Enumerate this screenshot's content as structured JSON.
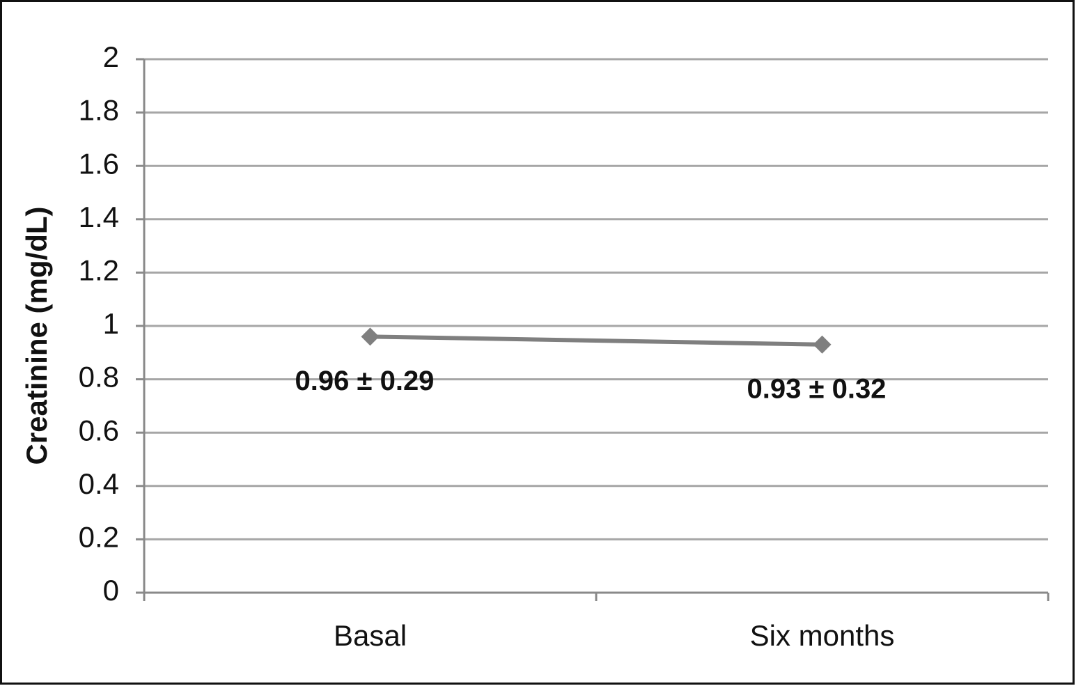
{
  "chart_data": {
    "type": "line",
    "y_label": "Creatinine (mg/dL)",
    "categories": [
      "Basal",
      "Six months"
    ],
    "values": [
      0.96,
      0.93
    ],
    "value_labels": [
      "0.96 ± 0.29",
      "0.93 ± 0.32"
    ],
    "color": "#7f7f7f",
    "ylim": [
      0,
      2
    ],
    "yticks": [
      0,
      0.2,
      0.4,
      0.6,
      0.8,
      1,
      1.2,
      1.4,
      1.6,
      1.8,
      2
    ],
    "grid": true
  }
}
